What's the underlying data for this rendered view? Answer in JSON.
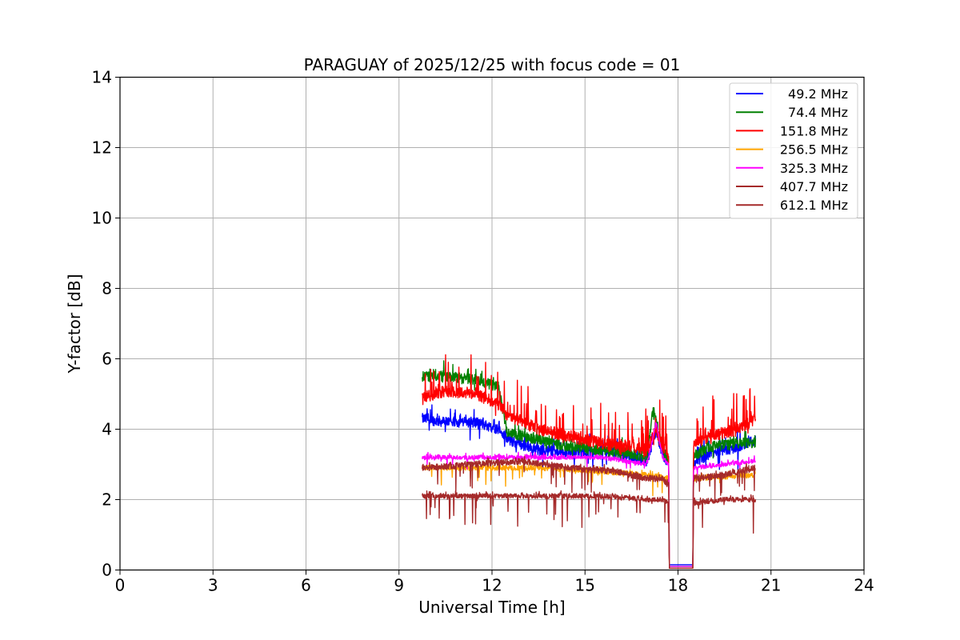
{
  "chart_data": {
    "type": "line",
    "title": "PARAGUAY of 2025/12/25 with focus code = 01",
    "xlabel": "Universal Time [h]",
    "ylabel": "Y-factor [dB]",
    "xlim": [
      0,
      24
    ],
    "ylim": [
      0,
      14
    ],
    "x_ticks": [
      "0",
      "3",
      "6",
      "9",
      "12",
      "15",
      "18",
      "21",
      "24"
    ],
    "y_ticks": [
      "0",
      "2",
      "4",
      "6",
      "8",
      "10",
      "12",
      "14"
    ],
    "grid": true,
    "legend_position": "top-right",
    "series": [
      {
        "name": " 49.2 MHz",
        "color": "#0000ff",
        "noise": 0.3,
        "spike": 0.4,
        "dip": 0.6,
        "points": [
          [
            9.75,
            4.3
          ],
          [
            10.5,
            4.2
          ],
          [
            11.5,
            4.2
          ],
          [
            12.2,
            4.0
          ],
          [
            12.5,
            3.7
          ],
          [
            13.5,
            3.4
          ],
          [
            14.5,
            3.3
          ],
          [
            15.5,
            3.4
          ],
          [
            16.5,
            3.2
          ],
          [
            17.0,
            3.1
          ],
          [
            17.3,
            3.9
          ],
          [
            17.5,
            3.3
          ],
          [
            17.7,
            3.0
          ],
          [
            17.72,
            0.15
          ],
          [
            18.48,
            0.15
          ],
          [
            18.5,
            3.0
          ],
          [
            19.0,
            3.3
          ],
          [
            20.0,
            3.5
          ],
          [
            20.5,
            3.7
          ]
        ]
      },
      {
        "name": " 74.4 MHz",
        "color": "#008000",
        "noise": 0.3,
        "spike": 0.3,
        "dip": 0.2,
        "points": [
          [
            9.75,
            5.5
          ],
          [
            10.5,
            5.5
          ],
          [
            11.5,
            5.4
          ],
          [
            12.2,
            5.2
          ],
          [
            12.5,
            3.9
          ],
          [
            13.5,
            3.7
          ],
          [
            14.5,
            3.5
          ],
          [
            15.5,
            3.4
          ],
          [
            16.5,
            3.3
          ],
          [
            17.0,
            3.2
          ],
          [
            17.2,
            4.6
          ],
          [
            17.5,
            3.4
          ],
          [
            17.7,
            3.1
          ],
          [
            17.72,
            0.1
          ],
          [
            18.48,
            0.1
          ],
          [
            18.5,
            3.2
          ],
          [
            19.0,
            3.5
          ],
          [
            20.0,
            3.6
          ],
          [
            20.5,
            3.6
          ]
        ]
      },
      {
        "name": "151.8 MHz",
        "color": "#ff0000",
        "noise": 0.35,
        "spike": 1.1,
        "dip": 0.2,
        "points": [
          [
            9.75,
            4.9
          ],
          [
            10.5,
            5.1
          ],
          [
            11.5,
            5.0
          ],
          [
            12.2,
            4.7
          ],
          [
            12.5,
            4.4
          ],
          [
            13.5,
            4.0
          ],
          [
            14.5,
            3.8
          ],
          [
            15.5,
            3.6
          ],
          [
            16.5,
            3.5
          ],
          [
            17.0,
            3.4
          ],
          [
            17.3,
            4.0
          ],
          [
            17.5,
            3.5
          ],
          [
            17.7,
            3.3
          ],
          [
            17.72,
            0.05
          ],
          [
            18.48,
            0.05
          ],
          [
            18.5,
            3.6
          ],
          [
            19.0,
            3.8
          ],
          [
            20.0,
            4.0
          ],
          [
            20.5,
            4.3
          ]
        ]
      },
      {
        "name": "256.5 MHz",
        "color": "#ffa500",
        "noise": 0.15,
        "spike": 0.1,
        "dip": 0.5,
        "points": [
          [
            9.75,
            2.9
          ],
          [
            11.5,
            2.9
          ],
          [
            13.5,
            2.9
          ],
          [
            15.5,
            2.8
          ],
          [
            17.0,
            2.7
          ],
          [
            17.7,
            2.6
          ],
          [
            17.72,
            0.05
          ],
          [
            18.48,
            0.05
          ],
          [
            18.5,
            2.6
          ],
          [
            20.5,
            2.7
          ]
        ]
      },
      {
        "name": "325.3 MHz",
        "color": "#ff00ff",
        "noise": 0.12,
        "spike": 0.1,
        "dip": 0.3,
        "points": [
          [
            9.75,
            3.2
          ],
          [
            11.5,
            3.2
          ],
          [
            13.5,
            3.2
          ],
          [
            15.5,
            3.2
          ],
          [
            17.0,
            3.0
          ],
          [
            17.3,
            4.2
          ],
          [
            17.5,
            3.2
          ],
          [
            17.7,
            3.0
          ],
          [
            17.72,
            0.1
          ],
          [
            18.48,
            0.1
          ],
          [
            18.5,
            2.9
          ],
          [
            19.5,
            3.0
          ],
          [
            20.5,
            3.1
          ]
        ]
      },
      {
        "name": "407.7 MHz",
        "color": "#a52a2a",
        "noise": 0.18,
        "spike": 0.1,
        "dip": 0.7,
        "points": [
          [
            9.75,
            2.9
          ],
          [
            11.5,
            3.0
          ],
          [
            13.0,
            3.1
          ],
          [
            14.5,
            2.9
          ],
          [
            16.0,
            2.8
          ],
          [
            17.0,
            2.6
          ],
          [
            17.5,
            2.6
          ],
          [
            17.7,
            2.4
          ],
          [
            17.72,
            0.05
          ],
          [
            18.48,
            0.05
          ],
          [
            18.5,
            2.6
          ],
          [
            19.5,
            2.7
          ],
          [
            20.5,
            2.9
          ]
        ]
      },
      {
        "name": "612.1 MHz",
        "color": "#a52a2a",
        "noise": 0.14,
        "spike": 0.1,
        "dip": 0.9,
        "points": [
          [
            9.75,
            2.1
          ],
          [
            11.5,
            2.1
          ],
          [
            13.5,
            2.1
          ],
          [
            15.5,
            2.1
          ],
          [
            17.0,
            2.0
          ],
          [
            17.5,
            2.0
          ],
          [
            17.7,
            1.9
          ],
          [
            17.72,
            0.05
          ],
          [
            18.48,
            0.05
          ],
          [
            18.5,
            1.9
          ],
          [
            19.5,
            2.0
          ],
          [
            20.5,
            2.0
          ]
        ]
      }
    ]
  }
}
